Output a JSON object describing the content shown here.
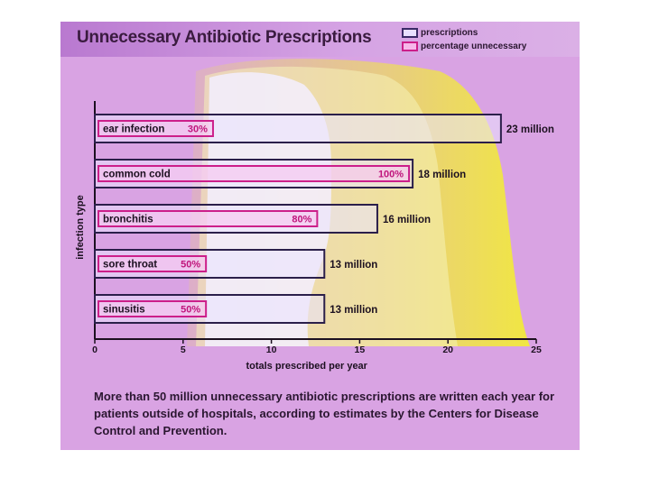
{
  "colors": {
    "background": "#d9a3e3",
    "bar_fill": "#eae4ff",
    "bar_border": "#2b1f4a",
    "pct_fill": "#f9c4ee",
    "pct_border": "#cc1f8a",
    "pct_text": "#c0157c",
    "glow_yellow": "#f2ea3a"
  },
  "chart_data": {
    "type": "bar",
    "orientation": "horizontal",
    "title": "Unnecessary Antibiotic Prescriptions",
    "xlabel": "totals prescribed per year",
    "ylabel": "infection type",
    "xlim": [
      0,
      25
    ],
    "xticks": [
      "0",
      "5",
      "10",
      "15",
      "20",
      "25"
    ],
    "legend": [
      "prescriptions",
      "percentage unnecessary"
    ],
    "legend_position": "top-right",
    "categories": [
      "ear infection",
      "common cold",
      "bronchitis",
      "sore throat",
      "sinusitis"
    ],
    "series": [
      {
        "name": "prescriptions",
        "values": [
          23,
          18,
          16,
          13,
          13
        ],
        "value_labels": [
          "23 million",
          "18 million",
          "16 million",
          "13 million",
          "13 million"
        ]
      },
      {
        "name": "percentage unnecessary",
        "values": [
          30,
          100,
          80,
          50,
          50
        ],
        "value_labels": [
          "30%",
          "100%",
          "80%",
          "50%",
          "50%"
        ]
      }
    ]
  },
  "caption": "More than 50 million unnecessary antibiotic prescriptions are written each year for patients outside of hospitals, according to estimates by the Centers for Disease Control and Prevention."
}
